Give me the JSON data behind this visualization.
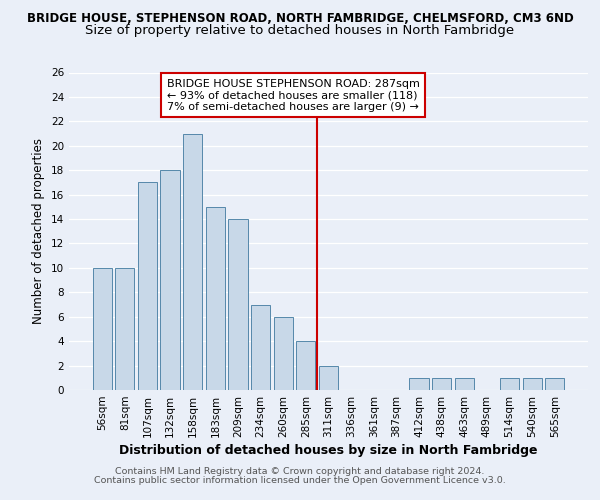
{
  "title": "BRIDGE HOUSE, STEPHENSON ROAD, NORTH FAMBRIDGE, CHELMSFORD, CM3 6ND",
  "subtitle": "Size of property relative to detached houses in North Fambridge",
  "xlabel": "Distribution of detached houses by size in North Fambridge",
  "ylabel": "Number of detached properties",
  "categories": [
    "56sqm",
    "81sqm",
    "107sqm",
    "132sqm",
    "158sqm",
    "183sqm",
    "209sqm",
    "234sqm",
    "260sqm",
    "285sqm",
    "311sqm",
    "336sqm",
    "361sqm",
    "387sqm",
    "412sqm",
    "438sqm",
    "463sqm",
    "489sqm",
    "514sqm",
    "540sqm",
    "565sqm"
  ],
  "values": [
    10,
    10,
    17,
    18,
    21,
    15,
    14,
    7,
    6,
    4,
    2,
    0,
    0,
    0,
    1,
    1,
    1,
    0,
    1,
    1,
    1
  ],
  "bar_color": "#c8d8e8",
  "bar_edge_color": "#5588aa",
  "vline_x": 9.5,
  "vline_color": "#cc0000",
  "annotation_title": "BRIDGE HOUSE STEPHENSON ROAD: 287sqm",
  "annotation_line1": "← 93% of detached houses are smaller (118)",
  "annotation_line2": "7% of semi-detached houses are larger (9) →",
  "annotation_box_color": "#cc0000",
  "ylim": [
    0,
    26
  ],
  "yticks": [
    0,
    2,
    4,
    6,
    8,
    10,
    12,
    14,
    16,
    18,
    20,
    22,
    24,
    26
  ],
  "footer1": "Contains HM Land Registry data © Crown copyright and database right 2024.",
  "footer2": "Contains public sector information licensed under the Open Government Licence v3.0.",
  "bg_color": "#eaeff8",
  "grid_color": "#ffffff",
  "title_fontsize": 8.5,
  "subtitle_fontsize": 9.5,
  "xlabel_fontsize": 9,
  "ylabel_fontsize": 8.5,
  "tick_fontsize": 7.5,
  "annotation_fontsize": 8,
  "footer_fontsize": 6.8
}
